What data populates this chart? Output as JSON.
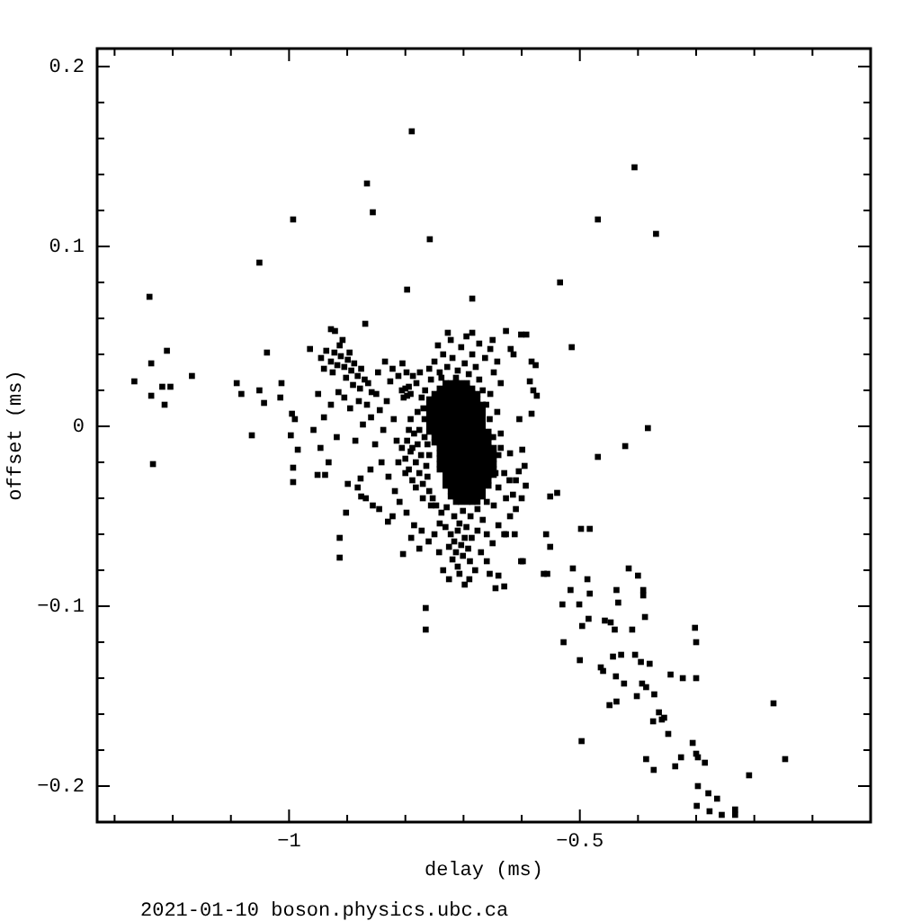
{
  "chart_data": {
    "type": "scatter",
    "xlabel": "delay (ms)",
    "ylabel": "offset (ms)",
    "annotations": [
      "2021-01-10 boson.physics.ubc.ca"
    ],
    "color": "#000000",
    "marker": "square",
    "xlim": [
      -1.33,
      0
    ],
    "ylim": [
      -0.22,
      0.21
    ],
    "xticks": [
      {
        "value": -1.3,
        "label": null
      },
      {
        "value": -1.2,
        "label": null
      },
      {
        "value": -1.1,
        "label": null
      },
      {
        "value": -1,
        "label": "−1"
      },
      {
        "value": -0.9,
        "label": null
      },
      {
        "value": -0.8,
        "label": null
      },
      {
        "value": -0.7,
        "label": null
      },
      {
        "value": -0.6,
        "label": null
      },
      {
        "value": -0.5,
        "label": "−0.5"
      },
      {
        "value": -0.4,
        "label": null
      },
      {
        "value": -0.3,
        "label": null
      },
      {
        "value": -0.2,
        "label": null
      },
      {
        "value": -0.1,
        "label": null
      }
    ],
    "yticks": [
      {
        "value": -0.2,
        "label": "−0.2"
      },
      {
        "value": -0.18,
        "label": null
      },
      {
        "value": -0.16,
        "label": null
      },
      {
        "value": -0.14,
        "label": null
      },
      {
        "value": -0.12,
        "label": null
      },
      {
        "value": -0.1,
        "label": "−0.1"
      },
      {
        "value": -0.08,
        "label": null
      },
      {
        "value": -0.06,
        "label": null
      },
      {
        "value": -0.04,
        "label": null
      },
      {
        "value": -0.02,
        "label": null
      },
      0,
      {
        "value": 0.02,
        "label": null
      },
      {
        "value": 0.04,
        "label": null
      },
      {
        "value": 0.06,
        "label": null
      },
      {
        "value": 0.08,
        "label": null
      },
      0.1,
      {
        "value": 0.12,
        "label": null
      },
      {
        "value": 0.14,
        "label": null
      },
      {
        "value": 0.16,
        "label": null
      },
      {
        "value": 0.18,
        "label": null
      },
      0.2
    ],
    "x": [
      -0.731,
      -0.722,
      -0.713,
      -0.704,
      -0.694,
      -0.741,
      -0.731,
      -0.722,
      -0.713,
      -0.704,
      -0.694,
      -0.685,
      -0.75,
      -0.741,
      -0.731,
      -0.722,
      -0.713,
      -0.704,
      -0.694,
      -0.685,
      -0.676,
      -0.759,
      -0.75,
      -0.741,
      -0.731,
      -0.722,
      -0.713,
      -0.704,
      -0.694,
      -0.685,
      -0.676,
      -0.759,
      -0.75,
      -0.741,
      -0.731,
      -0.722,
      -0.713,
      -0.704,
      -0.694,
      -0.685,
      -0.676,
      -0.667,
      -0.759,
      -0.75,
      -0.741,
      -0.731,
      -0.722,
      -0.713,
      -0.704,
      -0.694,
      -0.685,
      -0.676,
      -0.667,
      -0.759,
      -0.75,
      -0.741,
      -0.731,
      -0.722,
      -0.713,
      -0.704,
      -0.694,
      -0.685,
      -0.676,
      -0.667,
      -0.759,
      -0.75,
      -0.741,
      -0.731,
      -0.722,
      -0.713,
      -0.704,
      -0.694,
      -0.685,
      -0.676,
      -0.667,
      -0.759,
      -0.75,
      -0.741,
      -0.731,
      -0.722,
      -0.713,
      -0.704,
      -0.694,
      -0.685,
      -0.676,
      -0.667,
      -0.759,
      -0.75,
      -0.741,
      -0.731,
      -0.722,
      -0.713,
      -0.704,
      -0.694,
      -0.685,
      -0.676,
      -0.667,
      -0.657,
      -0.75,
      -0.741,
      -0.731,
      -0.722,
      -0.713,
      -0.704,
      -0.694,
      -0.685,
      -0.676,
      -0.667,
      -0.657,
      -0.75,
      -0.741,
      -0.731,
      -0.722,
      -0.713,
      -0.704,
      -0.694,
      -0.685,
      -0.676,
      -0.667,
      -0.657,
      -0.741,
      -0.731,
      -0.722,
      -0.713,
      -0.704,
      -0.694,
      -0.685,
      -0.676,
      -0.667,
      -0.657,
      -0.648,
      -0.741,
      -0.731,
      -0.722,
      -0.713,
      -0.704,
      -0.694,
      -0.685,
      -0.676,
      -0.667,
      -0.657,
      -0.648,
      -0.741,
      -0.731,
      -0.722,
      -0.713,
      -0.704,
      -0.694,
      -0.685,
      -0.676,
      -0.667,
      -0.657,
      -0.648,
      -0.741,
      -0.731,
      -0.722,
      -0.713,
      -0.704,
      -0.694,
      -0.685,
      -0.676,
      -0.667,
      -0.657,
      -0.648,
      -0.741,
      -0.731,
      -0.722,
      -0.713,
      -0.704,
      -0.694,
      -0.685,
      -0.676,
      -0.667,
      -0.657,
      -0.648,
      -0.731,
      -0.722,
      -0.713,
      -0.704,
      -0.694,
      -0.685,
      -0.676,
      -0.667,
      -0.657,
      -0.648,
      -0.731,
      -0.722,
      -0.713,
      -0.704,
      -0.694,
      -0.685,
      -0.676,
      -0.667,
      -0.657,
      -0.731,
      -0.722,
      -0.713,
      -0.704,
      -0.694,
      -0.685,
      -0.676,
      -0.667,
      -0.657,
      -0.722,
      -0.713,
      -0.704,
      -0.694,
      -0.685,
      -0.676,
      -0.667,
      -0.722,
      -0.713,
      -0.704,
      -0.694,
      -0.685,
      -0.676,
      -0.667,
      -0.713,
      -0.704,
      -0.694,
      -0.685,
      -0.676,
      -0.945,
      -0.936,
      -0.928,
      -0.922,
      -0.917,
      -0.911,
      -0.905,
      -0.899,
      -0.893,
      -0.888,
      -0.882,
      -0.876,
      -0.87,
      -0.925,
      -0.913,
      -0.902,
      -0.89,
      -0.878,
      -0.94,
      -0.908,
      -0.896,
      -0.864,
      -0.858,
      -0.806,
      -0.8,
      -0.797,
      -0.803,
      -0.794,
      -0.791,
      -0.806,
      -0.8,
      -0.797,
      -0.794,
      -0.791,
      -0.788,
      -0.785,
      -0.782,
      -0.779,
      -0.776,
      -0.773,
      -0.77,
      -0.767,
      -0.764,
      -0.788,
      -0.776,
      -0.8,
      -0.812,
      -0.782,
      -0.77,
      -0.794,
      -0.767,
      -0.779,
      -0.791,
      -0.722,
      -0.716,
      -0.71,
      -0.704,
      -0.698,
      -0.713,
      -0.701,
      -0.692,
      -0.725,
      -0.707,
      -0.695,
      -0.719,
      -0.689,
      -0.71,
      -0.731,
      -0.686,
      -0.707,
      -0.698,
      -0.759,
      -0.75,
      -0.741,
      -0.735,
      -0.728,
      -0.719,
      -0.71,
      -0.704,
      -0.698,
      -0.691,
      -0.685,
      -0.679,
      -0.673,
      -0.744,
      -0.722,
      -0.713,
      -0.756,
      -0.667,
      -0.695,
      -0.738,
      -0.787,
      -0.781,
      -0.775,
      -0.772,
      -0.766,
      -0.769,
      -0.661,
      -0.655,
      -0.649,
      -0.64,
      -0.636,
      -0.645,
      -0.64,
      -0.648,
      -0.636,
      -0.63,
      -0.642,
      -0.654,
      -0.627,
      -0.621,
      -0.747,
      -0.738,
      -0.729,
      -0.716,
      -0.701,
      -0.688,
      -0.676,
      -0.667,
      -0.66,
      -0.741,
      -0.66,
      -0.676,
      -0.759,
      -0.756,
      -0.762,
      -0.753,
      -0.759,
      -0.762,
      -0.685,
      -0.673,
      -0.663,
      -0.654,
      -0.648,
      -0.642,
      -0.636,
      -0.627,
      -0.619,
      -0.614,
      -0.601,
      -0.592,
      -0.583,
      -0.576,
      -0.586,
      -0.58,
      -0.574,
      -0.583,
      -0.604,
      -0.599,
      -0.65,
      -0.727,
      -0.866,
      -0.859,
      -0.85,
      -0.844,
      -0.838,
      -0.832,
      -0.826,
      -0.82,
      -0.815,
      -0.852,
      -0.841,
      -0.829,
      -0.818,
      -0.86,
      -0.873,
      -0.88,
      -0.847,
      -0.835,
      -0.822,
      -0.812,
      -0.805,
      -0.798,
      -0.886,
      -0.895,
      -0.905,
      -0.915,
      -0.928,
      -0.94,
      -0.95,
      -0.958,
      -0.946,
      -0.932,
      -0.918,
      -0.868,
      -0.845,
      -0.822,
      -0.81,
      -0.798,
      -0.785,
      -0.772,
      -0.76,
      -0.75,
      -0.742,
      -0.993,
      -0.993,
      -0.951,
      -0.938,
      -0.899,
      -0.882,
      -0.877,
      -0.902,
      -0.856,
      -0.83,
      -0.876,
      -0.913,
      -0.913,
      -0.804,
      -0.765,
      -0.765,
      -0.789,
      -0.866,
      -0.856,
      -0.993,
      -0.758,
      -1.051,
      -0.797,
      -1.24,
      -0.869,
      -0.928,
      -0.921,
      -0.964,
      -1.038,
      -1.21,
      -1.237,
      -1.167,
      -1.266,
      -1.218,
      -1.204,
      -1.237,
      -1.214,
      -1.09,
      -1.082,
      -1.051,
      -1.043,
      -1.013,
      -1.015,
      -1.064,
      -0.995,
      -0.99,
      -0.997,
      -0.985,
      -1.234,
      -0.406,
      -0.469,
      -0.369,
      -0.534,
      -0.685,
      -0.514,
      -0.383,
      -0.422,
      -0.469,
      -0.539,
      -0.551,
      -0.498,
      -0.483,
      -0.558,
      -0.551,
      -0.562,
      -0.556,
      -0.512,
      -0.416,
      -0.4,
      -0.487,
      -0.516,
      -0.483,
      -0.437,
      -0.391,
      -0.391,
      -0.53,
      -0.501,
      -0.434,
      -0.485,
      -0.496,
      -0.457,
      -0.447,
      -0.388,
      -0.44,
      -0.41,
      -0.528,
      -0.302,
      -0.3,
      -0.443,
      -0.429,
      -0.405,
      -0.5,
      -0.395,
      -0.38,
      -0.464,
      -0.46,
      -0.344,
      -0.323,
      -0.3,
      -0.438,
      -0.424,
      -0.393,
      -0.386,
      -0.402,
      -0.372,
      -0.449,
      -0.437,
      -0.364,
      -0.355,
      -0.359,
      -0.374,
      -0.167,
      -0.348,
      -0.497,
      -0.306,
      -0.3,
      -0.297,
      -0.285,
      -0.326,
      -0.336,
      -0.386,
      -0.373,
      -0.147,
      -0.209,
      -0.297,
      -0.279,
      -0.264,
      -0.299,
      -0.277,
      -0.256,
      -0.233,
      -0.233,
      -0.79,
      -0.776,
      -0.735,
      -0.725,
      -0.68,
      -0.67,
      -0.66,
      -0.65,
      -0.64,
      -0.63,
      -0.62,
      -0.61,
      -0.6,
      -0.61,
      -0.595,
      -0.69,
      -0.655,
      -0.645,
      -0.627,
      -0.612,
      -0.601,
      -0.598,
      -0.64,
      -0.63,
      -0.62,
      -0.605,
      -0.593,
      -0.615
    ],
    "values": [
      0.024,
      0.024,
      0.024,
      0.024,
      0.024,
      0.021,
      0.021,
      0.021,
      0.021,
      0.021,
      0.021,
      0.021,
      0.018,
      0.018,
      0.018,
      0.018,
      0.018,
      0.018,
      0.018,
      0.018,
      0.018,
      0.015,
      0.015,
      0.015,
      0.015,
      0.015,
      0.015,
      0.015,
      0.015,
      0.015,
      0.015,
      0.012,
      0.012,
      0.012,
      0.012,
      0.012,
      0.012,
      0.012,
      0.012,
      0.012,
      0.012,
      0.012,
      0.009,
      0.009,
      0.009,
      0.009,
      0.009,
      0.009,
      0.009,
      0.009,
      0.009,
      0.009,
      0.009,
      0.006,
      0.006,
      0.006,
      0.006,
      0.006,
      0.006,
      0.006,
      0.006,
      0.006,
      0.006,
      0.006,
      0.003,
      0.003,
      0.003,
      0.003,
      0.003,
      0.003,
      0.003,
      0.003,
      0.003,
      0.003,
      0.003,
      0,
      0,
      0,
      0,
      0,
      0,
      0,
      0,
      0,
      0,
      0,
      -0.003,
      -0.003,
      -0.003,
      -0.003,
      -0.003,
      -0.003,
      -0.003,
      -0.003,
      -0.003,
      -0.003,
      -0.003,
      -0.003,
      -0.006,
      -0.006,
      -0.006,
      -0.006,
      -0.006,
      -0.006,
      -0.006,
      -0.006,
      -0.006,
      -0.006,
      -0.006,
      -0.009,
      -0.009,
      -0.009,
      -0.009,
      -0.009,
      -0.009,
      -0.009,
      -0.009,
      -0.009,
      -0.009,
      -0.009,
      -0.012,
      -0.012,
      -0.012,
      -0.012,
      -0.012,
      -0.012,
      -0.012,
      -0.012,
      -0.012,
      -0.012,
      -0.012,
      -0.015,
      -0.015,
      -0.015,
      -0.015,
      -0.015,
      -0.015,
      -0.015,
      -0.015,
      -0.015,
      -0.015,
      -0.015,
      -0.018,
      -0.018,
      -0.018,
      -0.018,
      -0.018,
      -0.018,
      -0.018,
      -0.018,
      -0.018,
      -0.018,
      -0.018,
      -0.021,
      -0.021,
      -0.021,
      -0.021,
      -0.021,
      -0.021,
      -0.021,
      -0.021,
      -0.021,
      -0.021,
      -0.021,
      -0.024,
      -0.024,
      -0.024,
      -0.024,
      -0.024,
      -0.024,
      -0.024,
      -0.024,
      -0.024,
      -0.024,
      -0.024,
      -0.027,
      -0.027,
      -0.027,
      -0.027,
      -0.027,
      -0.027,
      -0.027,
      -0.027,
      -0.027,
      -0.027,
      -0.03,
      -0.03,
      -0.03,
      -0.03,
      -0.03,
      -0.03,
      -0.03,
      -0.03,
      -0.03,
      -0.033,
      -0.033,
      -0.033,
      -0.033,
      -0.033,
      -0.033,
      -0.033,
      -0.033,
      -0.033,
      -0.036,
      -0.036,
      -0.036,
      -0.036,
      -0.036,
      -0.036,
      -0.036,
      -0.039,
      -0.039,
      -0.039,
      -0.039,
      -0.039,
      -0.039,
      -0.039,
      -0.042,
      -0.042,
      -0.042,
      -0.042,
      -0.042,
      0.038,
      0.042,
      0.036,
      0.041,
      0.034,
      0.039,
      0.033,
      0.037,
      0.031,
      0.035,
      0.028,
      0.032,
      0.026,
      0.03,
      0.045,
      0.027,
      0.023,
      0.021,
      0.032,
      0.048,
      0.041,
      0.024,
      0.019,
      0.02,
      0.021,
      0.017,
      0.016,
      0.022,
      0.018,
      -0.012,
      -0.018,
      -0.008,
      -0.024,
      -0.014,
      -0.03,
      -0.004,
      -0.02,
      -0.01,
      -0.026,
      -0.016,
      -0.032,
      -0.006,
      -0.022,
      -0.012,
      -0.002,
      -0.026,
      -0.02,
      -0.034,
      -0.04,
      -0.002,
      0.004,
      0.008,
      0.004,
      -0.06,
      -0.064,
      -0.058,
      -0.066,
      -0.062,
      -0.07,
      -0.072,
      -0.068,
      -0.067,
      -0.054,
      -0.056,
      -0.074,
      -0.075,
      -0.078,
      -0.056,
      -0.062,
      -0.082,
      -0.088,
      0.032,
      0.036,
      0.03,
      0.04,
      0.033,
      0.038,
      0.031,
      0.044,
      0.035,
      0.029,
      0.04,
      0.033,
      0.026,
      0.045,
      0.048,
      0.027,
      0.026,
      0.02,
      0.05,
      0.027,
      0.028,
      0.024,
      0.03,
      0.016,
      0.02,
      0.01,
      0.012,
      0.004,
      -0.006,
      -0.016,
      -0.004,
      -0.026,
      -0.034,
      -0.044,
      -0.012,
      -0.026,
      0.008,
      0.018,
      -0.04,
      -0.03,
      -0.044,
      -0.048,
      -0.045,
      -0.05,
      -0.047,
      -0.05,
      -0.046,
      -0.052,
      -0.042,
      -0.054,
      -0.06,
      -0.058,
      -0.036,
      -0.044,
      -0.028,
      -0.04,
      -0.016,
      -0.01,
      0.052,
      0.046,
      0.038,
      0.043,
      0.03,
      0.036,
      0.024,
      0.053,
      0.043,
      0.04,
      0.051,
      0.051,
      0.036,
      0.034,
      0.025,
      0.02,
      0.017,
      0.007,
      0.004,
      -0.013,
      0.048,
      0.052,
      0.012,
      0.005,
      0.018,
      0.009,
      -0.002,
      0.014,
      0.025,
      0.004,
      -0.008,
      -0.01,
      -0.02,
      -0.028,
      -0.036,
      -0.024,
      0.001,
      0.014,
      0.03,
      0.036,
      0.032,
      0.028,
      0.035,
      0.03,
      -0.008,
      0.01,
      0.016,
      0.019,
      0.012,
      0.005,
      0.018,
      -0.002,
      -0.012,
      -0.02,
      -0.006,
      -0.04,
      -0.046,
      -0.05,
      -0.042,
      -0.048,
      -0.055,
      -0.058,
      -0.064,
      -0.06,
      -0.07,
      -0.023,
      -0.031,
      -0.027,
      -0.027,
      -0.032,
      -0.034,
      -0.029,
      -0.048,
      -0.044,
      -0.053,
      -0.039,
      -0.062,
      -0.073,
      -0.071,
      -0.101,
      -0.113,
      0.164,
      0.135,
      0.119,
      0.115,
      0.104,
      0.091,
      0.076,
      0.072,
      0.057,
      0.054,
      0.053,
      0.043,
      0.041,
      0.042,
      0.035,
      0.028,
      0.025,
      0.022,
      0.022,
      0.017,
      0.012,
      0.024,
      0.018,
      0.02,
      0.013,
      0.024,
      0.016,
      -0.005,
      0.007,
      0.004,
      -0.005,
      -0.013,
      -0.021,
      0.144,
      0.115,
      0.107,
      0.08,
      0.071,
      0.044,
      -0.001,
      -0.011,
      -0.017,
      -0.037,
      -0.039,
      -0.057,
      -0.057,
      -0.06,
      -0.067,
      -0.082,
      -0.082,
      -0.079,
      -0.079,
      -0.083,
      -0.085,
      -0.091,
      -0.093,
      -0.091,
      -0.091,
      -0.094,
      -0.099,
      -0.099,
      -0.098,
      -0.107,
      -0.111,
      -0.108,
      -0.109,
      -0.106,
      -0.113,
      -0.113,
      -0.12,
      -0.112,
      -0.12,
      -0.128,
      -0.127,
      -0.127,
      -0.13,
      -0.131,
      -0.132,
      -0.134,
      -0.136,
      -0.138,
      -0.14,
      -0.14,
      -0.139,
      -0.143,
      -0.143,
      -0.145,
      -0.15,
      -0.149,
      -0.155,
      -0.153,
      -0.159,
      -0.162,
      -0.163,
      -0.164,
      -0.154,
      -0.171,
      -0.175,
      -0.176,
      -0.182,
      -0.184,
      -0.187,
      -0.184,
      -0.189,
      -0.185,
      -0.191,
      -0.185,
      -0.194,
      -0.2,
      -0.204,
      -0.207,
      -0.211,
      -0.214,
      -0.216,
      -0.213,
      -0.216,
      -0.062,
      -0.068,
      -0.08,
      -0.085,
      -0.08,
      -0.07,
      -0.075,
      -0.065,
      -0.055,
      -0.06,
      -0.05,
      -0.046,
      -0.04,
      -0.03,
      -0.022,
      -0.085,
      -0.082,
      -0.09,
      -0.06,
      -0.06,
      -0.075,
      -0.075,
      -0.083,
      -0.089,
      -0.015,
      -0.025,
      -0.033,
      -0.038
    ]
  }
}
